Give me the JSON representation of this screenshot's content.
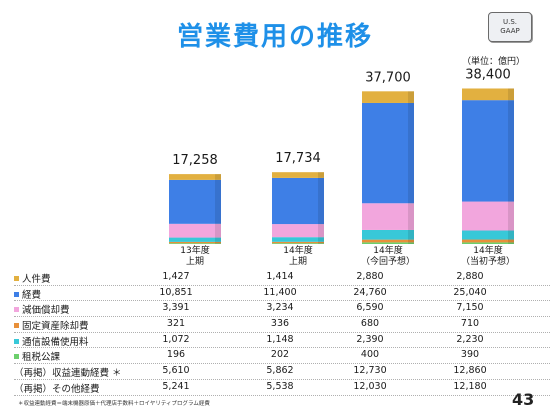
{
  "title": "営業費用の推移",
  "badge": {
    "line1": "U.S.",
    "line2": "GAAP"
  },
  "unit_label": "（単位：億円）",
  "colors": {
    "title": "#1e90e8",
    "bar_blue": "#3e7fe6",
    "bar_pink": "#f2a6dd",
    "bar_gold": "#e2b040",
    "bar_cyan": "#38c8d8",
    "bar_orange": "#e8903a",
    "bar_green": "#6ccf6c"
  },
  "chart_data": {
    "type": "bar",
    "stacked": true,
    "categories": [
      "13年度 上期",
      "14年度 上期",
      "14年度 （今回予想）",
      "14年度 （当初予想）"
    ],
    "category_lines": [
      [
        "13年度",
        "上期"
      ],
      [
        "14年度",
        "上期"
      ],
      [
        "14年度",
        "（今回予想）"
      ],
      [
        "14年度",
        "（当初予想）"
      ]
    ],
    "totals": [
      "17,258",
      "17,734",
      "37,700",
      "38,400"
    ],
    "series": [
      {
        "name": "人件費",
        "values": [
          1427,
          1414,
          2880,
          2880
        ],
        "color": "#e2b040"
      },
      {
        "name": "経費",
        "values": [
          10851,
          11400,
          24760,
          25040
        ],
        "color": "#3e7fe6"
      },
      {
        "name": "減価償却費",
        "values": [
          3391,
          3234,
          6590,
          7150
        ],
        "color": "#f2a6dd"
      },
      {
        "name": "固定資産除却費",
        "values": [
          321,
          336,
          680,
          710
        ],
        "color": "#e8903a"
      },
      {
        "name": "通信設備使用料",
        "values": [
          1072,
          1148,
          2390,
          2230
        ],
        "color": "#38c8d8"
      },
      {
        "name": "租税公課",
        "values": [
          196,
          202,
          400,
          390
        ],
        "color": "#6ccf6c"
      }
    ]
  },
  "table": {
    "rows": [
      {
        "label": "人件費",
        "color": "#e2b040",
        "values": [
          "1,427",
          "1,414",
          "2,880",
          "2,880"
        ]
      },
      {
        "label": "経費",
        "color": "#3e7fe6",
        "values": [
          "10,851",
          "11,400",
          "24,760",
          "25,040"
        ]
      },
      {
        "label": "減価償却費",
        "color": "#f2a6dd",
        "values": [
          "3,391",
          "3,234",
          "6,590",
          "7,150"
        ]
      },
      {
        "label": "固定資産除却費",
        "color": "#e8903a",
        "values": [
          "321",
          "336",
          "680",
          "710"
        ]
      },
      {
        "label": "通信設備使用料",
        "color": "#38c8d8",
        "values": [
          "1,072",
          "1,148",
          "2,390",
          "2,230"
        ]
      },
      {
        "label": "租税公課",
        "color": "#6ccf6c",
        "values": [
          "196",
          "202",
          "400",
          "390"
        ]
      },
      {
        "label": "（再掲）収益連動経費 ＊",
        "color": "",
        "values": [
          "5,610",
          "5,862",
          "12,730",
          "12,860"
        ]
      },
      {
        "label": "（再掲）その他経費",
        "color": "",
        "values": [
          "5,241",
          "5,538",
          "12,030",
          "12,180"
        ]
      }
    ]
  },
  "footnote": "＊収益連動経費＝端末機器原価＋代理店手数料＋ロイヤリティプログラム経費",
  "page_number": "43"
}
